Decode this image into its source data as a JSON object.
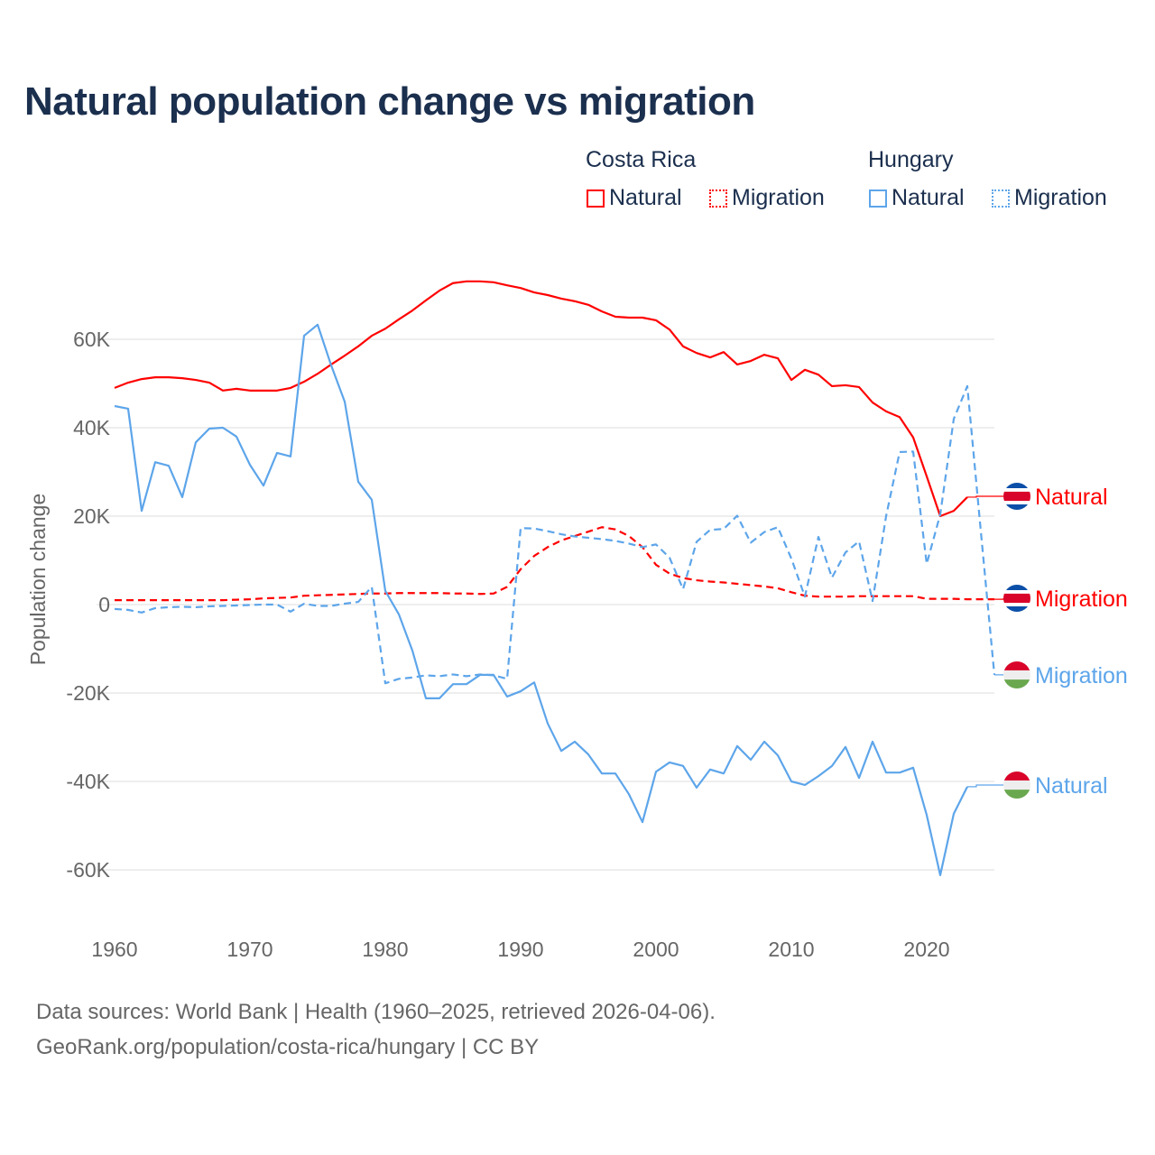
{
  "chart_data": {
    "type": "line",
    "title": "Natural population change vs migration",
    "ylabel": "Population change",
    "xlabel": "",
    "ylim": [
      -70000,
      75000
    ],
    "xlim": [
      1960,
      2025
    ],
    "grid": true,
    "y_ticks": [
      {
        "v": 60000,
        "label": "60K"
      },
      {
        "v": 40000,
        "label": "40K"
      },
      {
        "v": 20000,
        "label": "20K"
      },
      {
        "v": 0,
        "label": "0"
      },
      {
        "v": -20000,
        "label": "-20K"
      },
      {
        "v": -40000,
        "label": "-40K"
      },
      {
        "v": -60000,
        "label": "-60K"
      }
    ],
    "x_ticks": [
      {
        "v": 1960,
        "label": "1960"
      },
      {
        "v": 1970,
        "label": "1970"
      },
      {
        "v": 1980,
        "label": "1980"
      },
      {
        "v": 1990,
        "label": "1990"
      },
      {
        "v": 2000,
        "label": "2000"
      },
      {
        "v": 2010,
        "label": "2010"
      },
      {
        "v": 2020,
        "label": "2020"
      }
    ],
    "legend": {
      "placement": "top-right",
      "groups": [
        {
          "country": "Costa Rica",
          "items": [
            "Natural",
            "Migration"
          ]
        },
        {
          "country": "Hungary",
          "items": [
            "Natural",
            "Migration"
          ]
        }
      ]
    },
    "series": [
      {
        "name": "Costa Rica Natural",
        "country": "Costa Rica",
        "kind": "Natural",
        "label": "Natural",
        "color": "#ff0000",
        "dash": false,
        "flag": "costa-rica",
        "start": 1960,
        "values": [
          49000,
          50200,
          51000,
          51400,
          51400,
          51200,
          50800,
          50200,
          48400,
          48800,
          48400,
          48400,
          48400,
          49000,
          50400,
          52200,
          54300,
          56300,
          58400,
          60800,
          62400,
          64500,
          66500,
          68800,
          71000,
          72700,
          73100,
          73100,
          72900,
          72200,
          71600,
          70600,
          70000,
          69200,
          68600,
          67800,
          66300,
          65100,
          64900,
          64900,
          64300,
          62200,
          58400,
          56900,
          55900,
          57100,
          54300,
          55100,
          56500,
          55700,
          50800,
          53100,
          52000,
          49400,
          49600,
          49200,
          45700,
          43700,
          42400,
          37800,
          29000,
          20000,
          21200,
          24300
        ]
      },
      {
        "name": "Costa Rica Migration",
        "country": "Costa Rica",
        "kind": "Migration",
        "label": "Migration",
        "color": "#ff0000",
        "dash": true,
        "flag": "costa-rica",
        "start": 1960,
        "values": [
          1000,
          1000,
          1000,
          1000,
          1000,
          1000,
          1000,
          1000,
          1000,
          1100,
          1200,
          1400,
          1500,
          1600,
          2000,
          2100,
          2200,
          2300,
          2400,
          2500,
          2500,
          2600,
          2600,
          2600,
          2600,
          2500,
          2500,
          2400,
          2500,
          4000,
          8000,
          11000,
          13000,
          14500,
          15500,
          16500,
          17500,
          17000,
          15500,
          13000,
          9000,
          7000,
          6000,
          5500,
          5200,
          5000,
          4700,
          4400,
          4100,
          3700,
          2800,
          2000,
          1800,
          1800,
          1800,
          1900,
          1900,
          1900,
          1900,
          1900,
          1300,
          1300,
          1300,
          1200,
          1200,
          1200
        ]
      },
      {
        "name": "Hungary Natural",
        "country": "Hungary",
        "kind": "Natural",
        "label": "Natural",
        "color": "#5da5ea",
        "dash": false,
        "flag": "hungary",
        "start": 1960,
        "values": [
          44900,
          44300,
          21200,
          32200,
          31400,
          24300,
          36700,
          39800,
          40000,
          38000,
          31600,
          26900,
          34300,
          33500,
          60800,
          63300,
          54100,
          45900,
          27800,
          23700,
          3100,
          -2200,
          -10400,
          -21200,
          -21200,
          -18000,
          -18000,
          -15900,
          -15900,
          -20800,
          -19600,
          -17600,
          -26900,
          -33100,
          -31000,
          -33900,
          -38200,
          -38200,
          -42900,
          -49200,
          -37800,
          -35700,
          -36500,
          -41400,
          -37300,
          -38200,
          -32000,
          -35100,
          -31000,
          -34100,
          -40000,
          -40800,
          -38800,
          -36500,
          -32200,
          -39200,
          -31000,
          -38000,
          -38000,
          -36900,
          -47600,
          -61200,
          -47300,
          -41200
        ]
      },
      {
        "name": "Hungary Migration",
        "country": "Hungary",
        "kind": "Migration",
        "label": "Migration",
        "color": "#5da5ea",
        "dash": true,
        "flag": "hungary",
        "start": 1960,
        "values": [
          -1000,
          -1200,
          -1800,
          -800,
          -600,
          -500,
          -600,
          -400,
          -300,
          -200,
          -100,
          0,
          0,
          -1600,
          200,
          -300,
          -300,
          200,
          600,
          4000,
          -17800,
          -16800,
          -16500,
          -16000,
          -16200,
          -15800,
          -16200,
          -15800,
          -16000,
          -16800,
          17300,
          17200,
          16600,
          15900,
          15400,
          15100,
          14800,
          14400,
          13800,
          13000,
          13600,
          10600,
          3500,
          14200,
          16900,
          17100,
          20100,
          14000,
          16400,
          17500,
          10400,
          1800,
          15300,
          6100,
          11800,
          14300,
          800,
          20000,
          34500,
          34600,
          9200,
          20400,
          42000,
          49400,
          16500,
          -15900
        ]
      }
    ]
  },
  "footer": {
    "line1": "Data sources: World Bank | Health (1960–2025, retrieved 2026-04-06).",
    "line2": "GeoRank.org/population/costa-rica/hungary | CC BY"
  },
  "colors": {
    "costa_rica": "#ff0000",
    "hungary": "#5da5ea",
    "title": "#1b2f4e",
    "grid": "#e8e8e8",
    "axis_text": "#666666"
  }
}
